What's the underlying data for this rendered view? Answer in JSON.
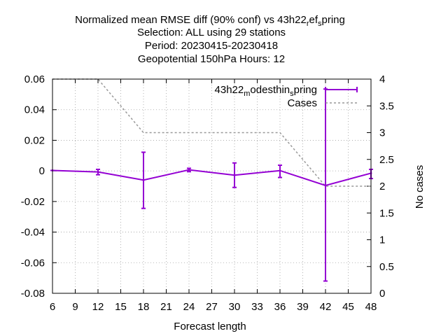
{
  "chart_data": {
    "type": "line",
    "title_lines": [
      "Normalized mean RMSE diff (90% conf) vs 43h22_ref_spring",
      "Selection: ALL using    29 stations",
      "Period: 20230415-20230418",
      "Geopotential 150hPa   Hours:  12"
    ],
    "xlabel": "Forecast length",
    "ylabel": "",
    "y2label": "No cases",
    "xlim": [
      6,
      48
    ],
    "ylim": [
      -0.08,
      0.06
    ],
    "y2lim": [
      0,
      4
    ],
    "xticks": [
      "6",
      "9",
      "12",
      "15",
      "18",
      "21",
      "24",
      "27",
      "30",
      "33",
      "36",
      "39",
      "42",
      "45",
      "48"
    ],
    "yticks": [
      "0.06",
      "0.04",
      "0.02",
      "0",
      "-0.02",
      "-0.04",
      "-0.06",
      "-0.08"
    ],
    "y2ticks": [
      "4",
      "3.5",
      "3",
      "2.5",
      "2",
      "1.5",
      "1",
      "0.5",
      "0"
    ],
    "grid": true,
    "legend_position": "top-right",
    "series": [
      {
        "name": "43h22_modesthin_spring",
        "color": "#9400d3",
        "axis": "y",
        "style": "line-errorbars",
        "x": [
          6,
          12,
          18,
          24,
          30,
          36,
          42,
          48
        ],
        "y": [
          0.0003,
          -0.0007,
          -0.006,
          0.0007,
          -0.0028,
          0.0002,
          -0.0095,
          -0.0015
        ],
        "err_low": [
          0.0003,
          -0.0025,
          -0.0245,
          -0.0005,
          -0.0108,
          -0.0043,
          -0.072,
          -0.005
        ],
        "err_high": [
          0.0003,
          0.001,
          0.0122,
          0.0017,
          0.0052,
          0.0037,
          0.0535,
          0.001
        ]
      },
      {
        "name": "Cases",
        "color": "#999999",
        "axis": "y2",
        "style": "dashed",
        "x": [
          6,
          12,
          18,
          24,
          30,
          36,
          42,
          48
        ],
        "y": [
          4,
          4,
          3,
          3,
          3,
          3,
          2,
          2
        ]
      }
    ],
    "legend": {
      "entry1_main": "43h22",
      "entry1_sub1": "m",
      "entry1_mid": "odesthin",
      "entry1_sub2": "s",
      "entry1_end": "pring",
      "entry2": "Cases"
    }
  }
}
